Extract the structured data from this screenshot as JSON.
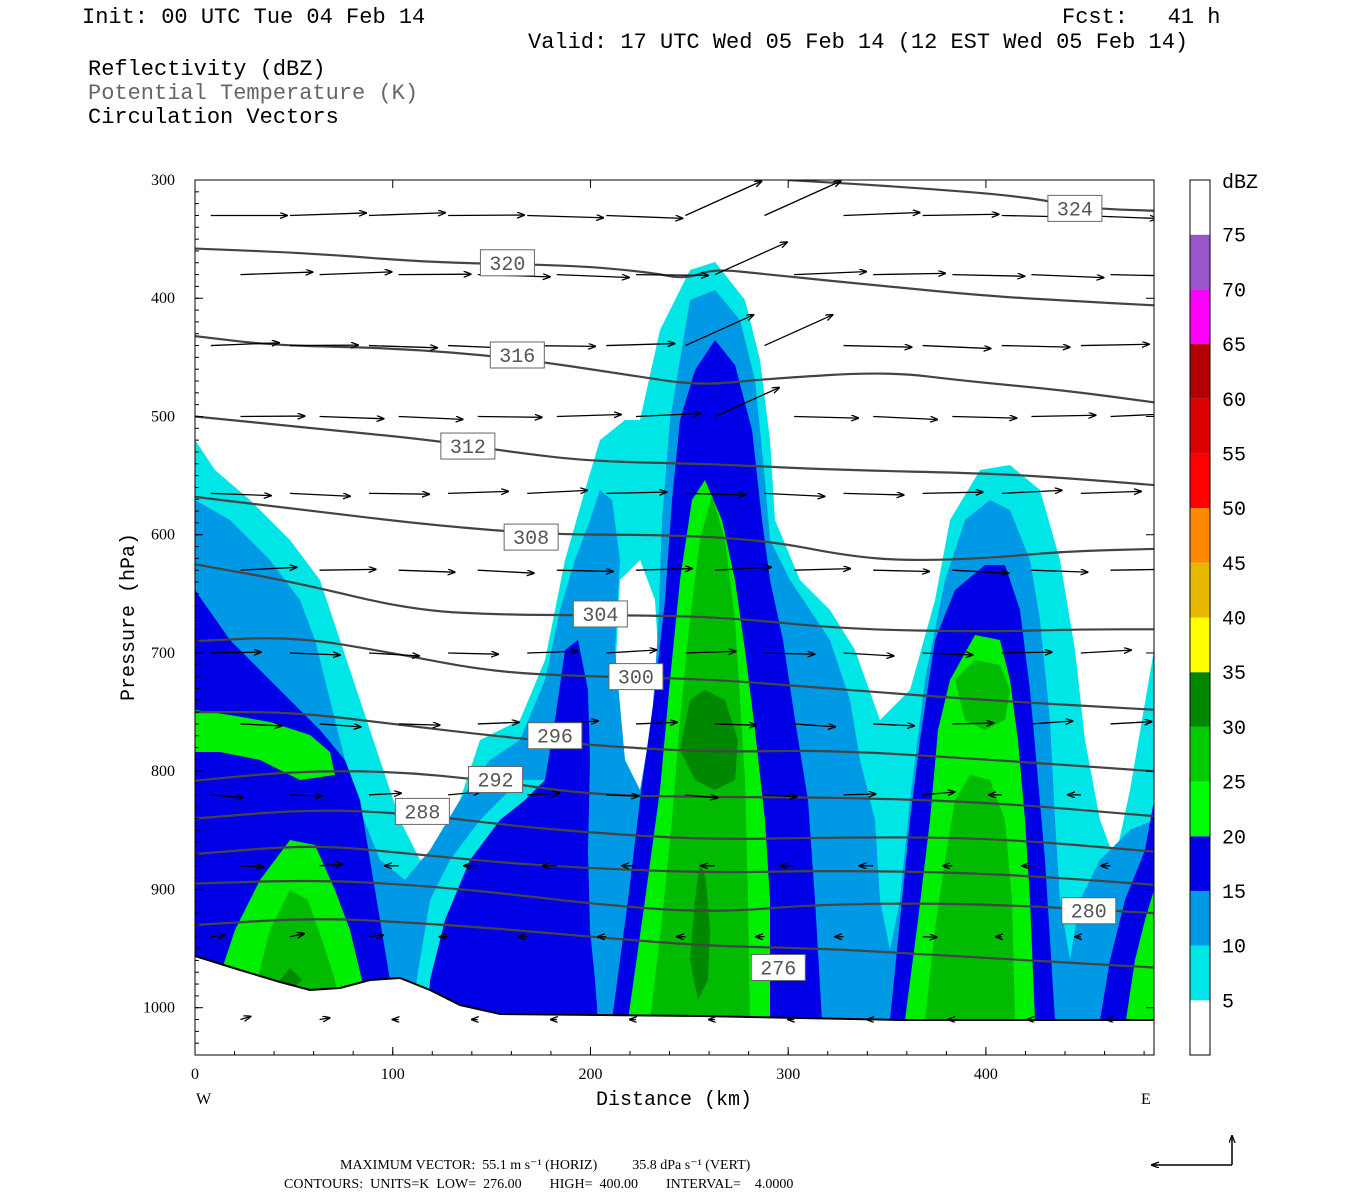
{
  "header": {
    "init": "Init: 00 UTC Tue 04 Feb 14",
    "fcst": "Fcst:   41 h",
    "valid": "Valid: 17 UTC Wed 05 Feb 14 (12 EST Wed 05 Feb 14)",
    "field1": "Reflectivity (dBZ)",
    "field2": "Potential Temperature (K)",
    "field3": "Circulation Vectors"
  },
  "footer": {
    "line1": "MAXIMUM VECTOR:  55.1 m s⁻¹ (HORIZ)          35.8 dPa s⁻¹ (VERT)",
    "line2": "CONTOURS:  UNITS=K  LOW=  276.00        HIGH=  400.00        INTERVAL=    4.0000"
  },
  "colors": {
    "theta_line": "#444444",
    "terrain_line": "#000000",
    "dbz_levels": [
      "#00e6e6",
      "#0099e6",
      "#0000e6",
      "#00ff00",
      "#00cc00",
      "#008800",
      "#ffff00",
      "#e6b800",
      "#ff8800",
      "#ff0000",
      "#dd0000",
      "#b30000",
      "#ff00ff",
      "#9955cc"
    ]
  },
  "chart_data": {
    "type": "cross-section",
    "xlabel": "Distance (km)",
    "ylabel": "Pressure (hPa)",
    "xlim": [
      0,
      485
    ],
    "ylim": [
      1040,
      300
    ],
    "x_ticks": [
      0,
      100,
      200,
      300,
      400
    ],
    "y_ticks": [
      300,
      400,
      500,
      600,
      700,
      800,
      900,
      1000
    ],
    "x_end_labels": {
      "left": "W",
      "right": "E"
    },
    "colorbar": {
      "title": "dBZ",
      "levels": [
        5,
        10,
        15,
        20,
        25,
        30,
        35,
        40,
        45,
        50,
        55,
        60,
        65,
        70,
        75
      ]
    },
    "theta_contours": [
      {
        "theta": 324,
        "label_at": [
          445,
          324
        ],
        "points": [
          [
            300,
            300
          ],
          [
            360,
            306
          ],
          [
            420,
            314
          ],
          [
            450,
            324
          ],
          [
            485,
            326
          ]
        ]
      },
      {
        "theta": 320,
        "label_at": [
          158,
          370
        ],
        "points": [
          [
            0,
            358
          ],
          [
            60,
            362
          ],
          [
            120,
            370
          ],
          [
            190,
            372
          ],
          [
            230,
            378
          ],
          [
            248,
            384
          ],
          [
            262,
            375
          ],
          [
            290,
            380
          ],
          [
            350,
            390
          ],
          [
            400,
            398
          ],
          [
            440,
            402
          ],
          [
            485,
            406
          ]
        ]
      },
      {
        "theta": 316,
        "label_at": [
          163,
          448
        ],
        "points": [
          [
            0,
            432
          ],
          [
            40,
            440
          ],
          [
            100,
            442
          ],
          [
            160,
            450
          ],
          [
            220,
            465
          ],
          [
            255,
            474
          ],
          [
            290,
            468
          ],
          [
            350,
            462
          ],
          [
            390,
            470
          ],
          [
            440,
            478
          ],
          [
            485,
            488
          ]
        ]
      },
      {
        "theta": 312,
        "label_at": [
          138,
          525
        ],
        "points": [
          [
            0,
            500
          ],
          [
            60,
            510
          ],
          [
            120,
            520
          ],
          [
            160,
            530
          ],
          [
            200,
            538
          ],
          [
            260,
            540
          ],
          [
            320,
            545
          ],
          [
            400,
            548
          ],
          [
            440,
            552
          ],
          [
            485,
            558
          ]
        ]
      },
      {
        "theta": 308,
        "label_at": [
          170,
          602
        ],
        "points": [
          [
            0,
            568
          ],
          [
            60,
            580
          ],
          [
            120,
            592
          ],
          [
            180,
            600
          ],
          [
            240,
            600
          ],
          [
            290,
            605
          ],
          [
            330,
            618
          ],
          [
            360,
            622
          ],
          [
            400,
            620
          ],
          [
            440,
            614
          ],
          [
            485,
            612
          ]
        ]
      },
      {
        "theta": 304,
        "label_at": [
          205,
          667
        ],
        "points": [
          [
            0,
            625
          ],
          [
            50,
            640
          ],
          [
            110,
            664
          ],
          [
            160,
            668
          ],
          [
            220,
            668
          ],
          [
            270,
            670
          ],
          [
            330,
            680
          ],
          [
            400,
            682
          ],
          [
            450,
            680
          ],
          [
            485,
            680
          ]
        ]
      },
      {
        "theta": 300,
        "label_at": [
          223,
          720
        ],
        "points": [
          [
            0,
            690
          ],
          [
            50,
            686
          ],
          [
            100,
            700
          ],
          [
            150,
            716
          ],
          [
            200,
            720
          ],
          [
            260,
            722
          ],
          [
            320,
            730
          ],
          [
            400,
            740
          ],
          [
            485,
            748
          ]
        ]
      },
      {
        "theta": 296,
        "label_at": [
          182,
          770
        ],
        "points": [
          [
            0,
            750
          ],
          [
            50,
            750
          ],
          [
            100,
            760
          ],
          [
            150,
            770
          ],
          [
            200,
            778
          ],
          [
            260,
            784
          ],
          [
            320,
            782
          ],
          [
            400,
            790
          ],
          [
            485,
            800
          ]
        ]
      },
      {
        "theta": 292,
        "label_at": [
          152,
          807
        ],
        "points": [
          [
            0,
            808
          ],
          [
            50,
            800
          ],
          [
            100,
            800
          ],
          [
            150,
            808
          ],
          [
            200,
            820
          ],
          [
            260,
            822
          ],
          [
            320,
            822
          ],
          [
            400,
            826
          ],
          [
            485,
            838
          ]
        ]
      },
      {
        "theta": 288,
        "label_at": [
          115,
          834
        ],
        "points": [
          [
            0,
            840
          ],
          [
            60,
            832
          ],
          [
            110,
            836
          ],
          [
            160,
            846
          ],
          [
            200,
            852
          ],
          [
            260,
            858
          ],
          [
            320,
            856
          ],
          [
            400,
            856
          ],
          [
            485,
            868
          ]
        ]
      },
      {
        "theta": 284,
        "label_at": null,
        "points": [
          [
            0,
            870
          ],
          [
            60,
            862
          ],
          [
            110,
            870
          ],
          [
            160,
            878
          ],
          [
            200,
            882
          ],
          [
            260,
            886
          ],
          [
            320,
            884
          ],
          [
            400,
            886
          ],
          [
            485,
            896
          ]
        ]
      },
      {
        "theta": 280,
        "label_at": [
          452,
          918
        ],
        "points": [
          [
            0,
            895
          ],
          [
            60,
            892
          ],
          [
            110,
            896
          ],
          [
            160,
            904
          ],
          [
            200,
            912
          ],
          [
            260,
            920
          ],
          [
            320,
            912
          ],
          [
            400,
            912
          ],
          [
            485,
            920
          ]
        ]
      },
      {
        "theta": 276,
        "label_at": [
          295,
          966
        ],
        "points": [
          [
            0,
            930
          ],
          [
            60,
            924
          ],
          [
            110,
            928
          ],
          [
            160,
            934
          ],
          [
            200,
            940
          ],
          [
            260,
            948
          ],
          [
            320,
            950
          ],
          [
            400,
            958
          ],
          [
            485,
            966
          ]
        ]
      }
    ]
  }
}
